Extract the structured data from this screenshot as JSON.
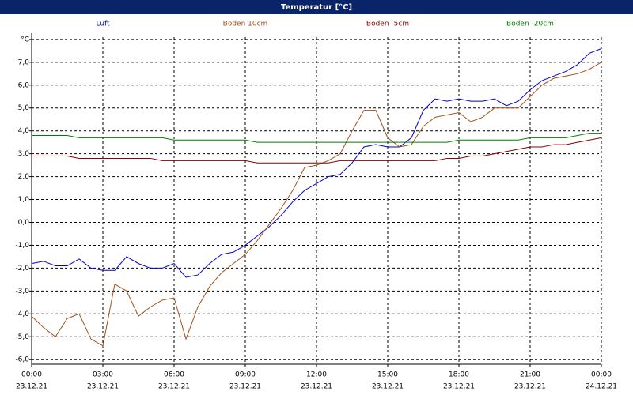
{
  "chart_data": {
    "type": "line",
    "title": "Temperatur [°C]",
    "x": [
      0,
      0.5,
      1,
      1.5,
      2,
      2.5,
      3,
      3.5,
      4,
      4.5,
      5,
      5.5,
      6,
      6.5,
      7,
      7.5,
      8,
      8.5,
      9,
      9.5,
      10,
      10.5,
      11,
      11.5,
      12,
      12.5,
      13,
      13.5,
      14,
      14.5,
      15,
      15.5,
      16,
      16.5,
      17,
      17.5,
      18,
      18.5,
      19,
      19.5,
      20,
      20.5,
      21,
      21.5,
      22,
      22.5,
      23,
      23.5,
      24
    ],
    "series": [
      {
        "name": "Luft",
        "color": "#0000c8",
        "values": [
          -1.8,
          -1.7,
          -1.9,
          -1.9,
          -1.6,
          -2.0,
          -2.1,
          -2.1,
          -1.5,
          -1.8,
          -2.0,
          -2.0,
          -1.8,
          -2.4,
          -2.3,
          -1.8,
          -1.4,
          -1.3,
          -1.0,
          -0.6,
          -0.2,
          0.3,
          0.9,
          1.4,
          1.7,
          2.0,
          2.1,
          2.6,
          3.3,
          3.4,
          3.3,
          3.3,
          3.7,
          4.9,
          5.4,
          5.3,
          5.4,
          5.3,
          5.3,
          5.4,
          5.1,
          5.3,
          5.8,
          6.2,
          6.4,
          6.6,
          6.9,
          7.4,
          7.6
        ]
      },
      {
        "name": "Boden 10cm",
        "color": "#a0501a",
        "values": [
          -4.1,
          -4.6,
          -5.0,
          -4.2,
          -4.0,
          -5.1,
          -5.4,
          -2.7,
          -3.0,
          -4.1,
          -3.7,
          -3.4,
          -3.3,
          -5.1,
          -3.7,
          -2.8,
          -2.2,
          -1.8,
          -1.4,
          -0.8,
          -0.1,
          0.6,
          1.4,
          2.4,
          2.5,
          2.7,
          3.0,
          4.0,
          4.9,
          4.9,
          3.7,
          3.3,
          3.4,
          4.2,
          4.6,
          4.7,
          4.8,
          4.4,
          4.6,
          5.0,
          5.0,
          5.0,
          5.5,
          6.0,
          6.3,
          6.4,
          6.5,
          6.7,
          7.0
        ]
      },
      {
        "name": "Boden -5cm",
        "color": "#8b0000",
        "values": [
          2.9,
          2.9,
          2.9,
          2.9,
          2.8,
          2.8,
          2.8,
          2.8,
          2.8,
          2.8,
          2.8,
          2.7,
          2.7,
          2.7,
          2.7,
          2.7,
          2.7,
          2.7,
          2.7,
          2.6,
          2.6,
          2.6,
          2.6,
          2.6,
          2.6,
          2.6,
          2.7,
          2.7,
          2.7,
          2.7,
          2.7,
          2.7,
          2.7,
          2.7,
          2.7,
          2.8,
          2.8,
          2.9,
          2.9,
          3.0,
          3.1,
          3.2,
          3.3,
          3.3,
          3.4,
          3.4,
          3.5,
          3.6,
          3.7
        ]
      },
      {
        "name": "Boden -20cm",
        "color": "#008000",
        "values": [
          3.8,
          3.8,
          3.8,
          3.8,
          3.7,
          3.7,
          3.7,
          3.7,
          3.7,
          3.7,
          3.7,
          3.7,
          3.6,
          3.6,
          3.6,
          3.6,
          3.6,
          3.6,
          3.6,
          3.5,
          3.5,
          3.5,
          3.5,
          3.5,
          3.5,
          3.5,
          3.5,
          3.5,
          3.5,
          3.5,
          3.5,
          3.5,
          3.5,
          3.5,
          3.5,
          3.5,
          3.6,
          3.6,
          3.6,
          3.6,
          3.6,
          3.6,
          3.7,
          3.7,
          3.7,
          3.7,
          3.8,
          3.9,
          3.9
        ]
      }
    ],
    "xlim": [
      0,
      24
    ],
    "xticks": [
      {
        "value": 0,
        "label": "00:00"
      },
      {
        "value": 3,
        "label": "03:00"
      },
      {
        "value": 6,
        "label": "06:00"
      },
      {
        "value": 9,
        "label": "09:00"
      },
      {
        "value": 12,
        "label": "12:00"
      },
      {
        "value": 15,
        "label": "15:00"
      },
      {
        "value": 18,
        "label": "18:00"
      },
      {
        "value": 21,
        "label": "21:00"
      },
      {
        "value": 24,
        "label": "00:00"
      }
    ],
    "xtick_dates": [
      "23.12.21",
      "23.12.21",
      "23.12.21",
      "23.12.21",
      "23.12.21",
      "23.12.21",
      "23.12.21",
      "23.12.21",
      "24.12.21"
    ],
    "ylim": [
      -6.2,
      8.1
    ],
    "yticks": [
      {
        "value": -6,
        "label": "-6,0"
      },
      {
        "value": -5,
        "label": "-5,0"
      },
      {
        "value": -4,
        "label": "-4,0"
      },
      {
        "value": -3,
        "label": "-3,0"
      },
      {
        "value": -2,
        "label": "-2,0"
      },
      {
        "value": -1,
        "label": "-1,0"
      },
      {
        "value": 0,
        "label": "0,0"
      },
      {
        "value": 1,
        "label": "1,0"
      },
      {
        "value": 2,
        "label": "2,0"
      },
      {
        "value": 3,
        "label": "3,0"
      },
      {
        "value": 4,
        "label": "4,0"
      },
      {
        "value": 5,
        "label": "5,0"
      },
      {
        "value": 6,
        "label": "6,0"
      },
      {
        "value": 7,
        "label": "7,0"
      },
      {
        "value": 8,
        "label": "°C"
      }
    ],
    "grid": true
  }
}
